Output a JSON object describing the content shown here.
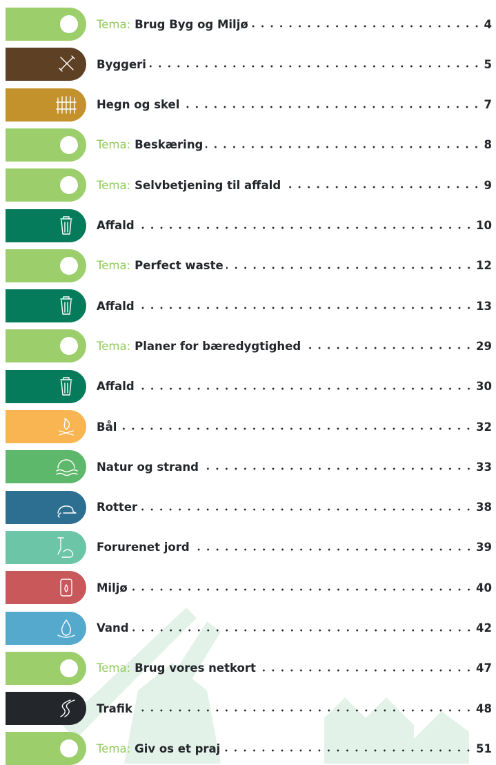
{
  "toc": {
    "rows": [
      {
        "tema": "Tema:",
        "title": "Brug Byg og Miljø",
        "page": "4",
        "color": "#9ccf6c"
      },
      {
        "title": "Byggeri",
        "page": "5",
        "color": "#5e4125"
      },
      {
        "title": "Hegn og skel",
        "page": "7",
        "color": "#c4922c"
      },
      {
        "tema": "Tema:",
        "title": "Beskæring",
        "page": "8",
        "color": "#9ccf6c"
      },
      {
        "tema": "Tema:",
        "title": "Selvbetjening til affald",
        "page": "9",
        "color": "#9ccf6c"
      },
      {
        "title": "Affald",
        "page": "10",
        "color": "#067b5b"
      },
      {
        "tema": "Tema:",
        "title": "Perfect waste",
        "page": "12",
        "color": "#9ccf6c"
      },
      {
        "title": "Affald",
        "page": "13",
        "color": "#067b5b"
      },
      {
        "tema": "Tema:",
        "title": "Planer for bæredygtighed",
        "page": "29",
        "color": "#9ccf6c"
      },
      {
        "title": "Affald",
        "page": "30",
        "color": "#067b5b"
      },
      {
        "title": "Bål",
        "page": "32",
        "color": "#f9b552"
      },
      {
        "title": "Natur og strand",
        "page": "33",
        "color": "#5db86b"
      },
      {
        "title": "Rotter",
        "page": "38",
        "color": "#2d6f91"
      },
      {
        "title": "Forurenet jord",
        "page": "39",
        "color": "#6cc5a7"
      },
      {
        "title": "Miljø",
        "page": "40",
        "color": "#c9585b"
      },
      {
        "title": "Vand",
        "page": "42",
        "color": "#55a9cd"
      },
      {
        "tema": "Tema:",
        "title": "Brug vores netkort",
        "page": "47",
        "color": "#9ccf6c"
      },
      {
        "title": "Trafik",
        "page": "48",
        "color": "#23262b"
      },
      {
        "tema": "Tema:",
        "title": "Giv os et praj",
        "page": "51",
        "color": "#9ccf6c"
      }
    ]
  }
}
